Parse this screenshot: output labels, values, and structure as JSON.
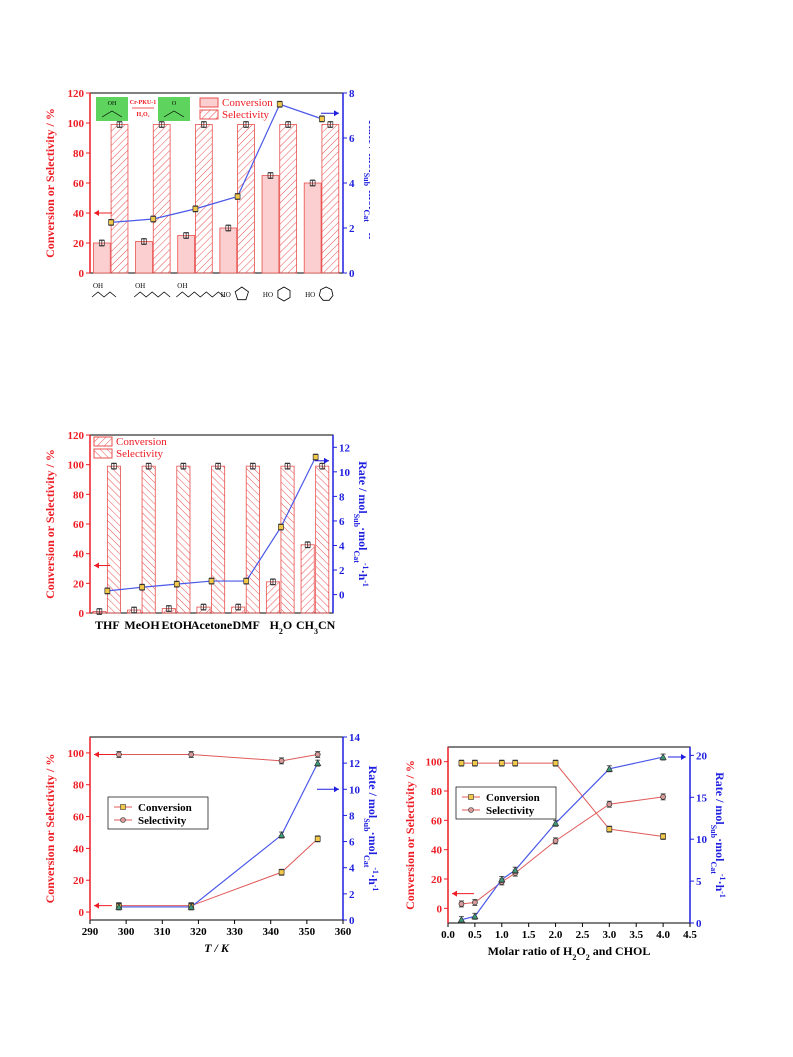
{
  "colors": {
    "left_axis": "#ee1c24",
    "right_axis": "#1f1fe0",
    "bar_fill": "#fbcfcf",
    "bar_stroke": "#e8504f",
    "rate_line": "#4a58e8",
    "sel_line": "#e05a5a",
    "conv_marker": "#f2c84b"
  },
  "chart_data": [
    {
      "type": "bar",
      "categories": [
        "2-pentanol",
        "2-octanol",
        "2-decanol",
        "cyclopentanol",
        "cyclohexanol",
        "cycloheptanol"
      ],
      "left_axis": {
        "label": "Conversion or Selectivity / %",
        "range": [
          0,
          120
        ],
        "ticks": [
          "0",
          "20",
          "40",
          "60",
          "80",
          "100",
          "120"
        ]
      },
      "right_axis": {
        "label": "Rate / mol",
        "sub1": "Sub",
        "mid": "·mol",
        "sub2": "Cat",
        "sup1": "-1",
        "mid2": "·h",
        "sup2": "-1",
        "range": [
          0,
          8
        ],
        "ticks": [
          "0",
          "2",
          "4",
          "6",
          "8"
        ]
      },
      "series": [
        {
          "name": "Conversion",
          "kind": "bar",
          "values": [
            20,
            21,
            25,
            30,
            65,
            60
          ]
        },
        {
          "name": "Selectivity",
          "kind": "bar",
          "values": [
            99,
            99,
            99,
            99,
            99,
            99
          ]
        },
        {
          "kind": "line",
          "axis": "right",
          "values": [
            2.25,
            2.4,
            2.85,
            3.4,
            7.5,
            6.85
          ]
        }
      ],
      "scheme": {
        "catalyst": "Cr-PKU-1",
        "oxidant": "H₂O₂",
        "reactant_oh": "OH",
        "product_o": "O"
      },
      "substrate_labels": [
        "OH",
        "OH",
        "OH",
        "HO",
        "HO",
        "HO"
      ],
      "legend": "top-right"
    },
    {
      "type": "bar",
      "categories": [
        "THF",
        "MeOH",
        "EtOH",
        "Acetone",
        "DMF",
        "H",
        "CH"
      ],
      "category_subs": [
        "",
        "",
        "",
        "",
        "",
        "2",
        "3"
      ],
      "category_tails": [
        "",
        "",
        "",
        "",
        "",
        "O",
        "CN"
      ],
      "left_axis": {
        "label": "Conversion or Selectivity / %",
        "range": [
          0,
          120
        ],
        "ticks": [
          "0",
          "20",
          "40",
          "60",
          "80",
          "100",
          "120"
        ]
      },
      "right_axis": {
        "label": "Rate / mol",
        "sub1": "Sub",
        "mid": "·mol",
        "sub2": "Cat",
        "sup1": "-1",
        "mid2": "·h",
        "sup2": "-1",
        "range": [
          -1.5,
          13
        ],
        "ticks": [
          "0",
          "2",
          "4",
          "6",
          "8",
          "10",
          "12"
        ]
      },
      "series": [
        {
          "name": "Conversion",
          "kind": "bar",
          "values": [
            1,
            2,
            3,
            4,
            4,
            21,
            46
          ]
        },
        {
          "name": "Selectivity",
          "kind": "bar",
          "values": [
            99,
            99,
            99,
            99,
            99,
            99,
            99
          ]
        },
        {
          "kind": "line",
          "axis": "right",
          "values": [
            0.3,
            0.6,
            0.85,
            1.1,
            1.1,
            5.5,
            11.2
          ]
        }
      ],
      "legend": "top-left"
    },
    {
      "type": "line",
      "xlabel": "T / K",
      "x_axis": {
        "range": [
          290,
          360
        ],
        "ticks": [
          "290",
          "300",
          "310",
          "320",
          "330",
          "340",
          "350",
          "360"
        ]
      },
      "left_axis": {
        "label": "Conversion or Selectivity / %",
        "range": [
          -5,
          110
        ],
        "ticks": [
          "0",
          "20",
          "40",
          "60",
          "80",
          "100"
        ]
      },
      "right_axis": {
        "label": "Rate / mol",
        "sub1": "Sub",
        "mid": "·mol",
        "sub2": "Cat",
        "sup1": "-1",
        "mid2": "·h",
        "sup2": "-1",
        "range": [
          0,
          14
        ],
        "ticks": [
          "0",
          "2",
          "4",
          "6",
          "8",
          "10",
          "12",
          "14"
        ]
      },
      "x": [
        298,
        318,
        343,
        353
      ],
      "series": [
        {
          "name": "Conversion",
          "axis": "left",
          "values": [
            4,
            4,
            25,
            46
          ]
        },
        {
          "name": "Selectivity",
          "axis": "left",
          "values": [
            99,
            99,
            95,
            99
          ]
        },
        {
          "axis": "right",
          "values": [
            1.0,
            1.0,
            6.5,
            12.0
          ]
        }
      ],
      "legend": "center-left"
    },
    {
      "type": "line",
      "xlabel": "Molar ratio of H",
      "xlabel_sub": "2",
      "xlabel_mid": "O",
      "xlabel_sub2": "2",
      "xlabel_tail": " and CHOL",
      "x_axis": {
        "range": [
          0.0,
          4.5
        ],
        "ticks": [
          "0.0",
          "0.5",
          "1.0",
          "1.5",
          "2.0",
          "2.5",
          "3.0",
          "3.5",
          "4.0",
          "4.5"
        ]
      },
      "left_axis": {
        "label": "Conversion or Selectivity / %",
        "range": [
          -10,
          110
        ],
        "ticks": [
          "0",
          "20",
          "40",
          "60",
          "80",
          "100"
        ]
      },
      "right_axis": {
        "label": "Rate / mol",
        "sub1": "Sub",
        "mid": "·mol",
        "sub2": "Cat",
        "sup1": "-1",
        "mid2": "·h",
        "sup2": "-1",
        "range": [
          0,
          21
        ],
        "ticks": [
          "0",
          "5",
          "10",
          "15",
          "20"
        ]
      },
      "x": [
        0.25,
        0.5,
        1.0,
        1.25,
        2.0,
        3.0,
        4.0
      ],
      "series": [
        {
          "name": "Conversion",
          "axis": "left",
          "values": [
            99,
            99,
            99,
            99,
            99,
            54,
            49
          ]
        },
        {
          "name": "Selectivity",
          "axis": "left",
          "values": [
            3,
            4,
            18,
            24,
            46,
            71,
            76
          ]
        },
        {
          "axis": "right",
          "values": [
            0.4,
            0.8,
            5.2,
            6.3,
            11.9,
            18.4,
            19.8
          ]
        }
      ],
      "legend": "top-left"
    }
  ]
}
